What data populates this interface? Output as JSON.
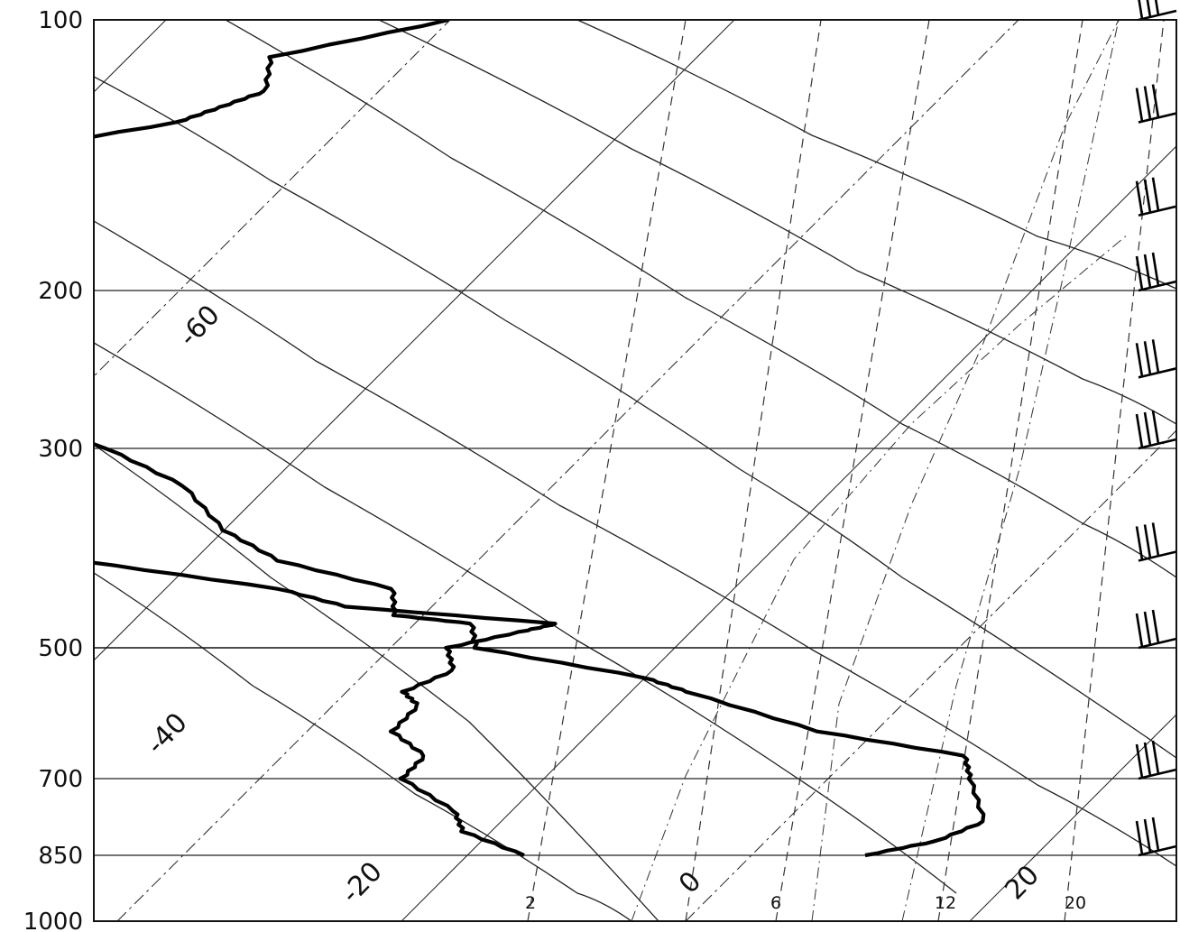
{
  "chart_data": {
    "type": "line",
    "title": "",
    "xlabel": "",
    "ylabel": "",
    "grid": true,
    "legend": "none",
    "pressure_axis": {
      "scale": "log",
      "ylim": [
        1000,
        100
      ],
      "ticks": [
        "100",
        "200",
        "300",
        "500",
        "700",
        "850",
        "1000"
      ]
    },
    "isotherm_labels": [
      "-60",
      "-40",
      "-20",
      "0",
      "20"
    ],
    "mixing_ratio_labels": [
      "2",
      "6",
      "12",
      "20"
    ],
    "series": [
      {
        "kind": "temperature",
        "pressure": [
          850,
          820,
          780,
          700,
          660,
          620,
          560,
          540,
          500,
          470,
          460,
          430,
          400,
          370,
          330,
          300,
          270,
          250,
          230,
          210,
          200,
          196,
          180,
          175,
          165,
          160,
          150,
          140,
          130,
          125,
          120,
          110,
          100
        ],
        "temp": [
          4,
          6,
          7,
          5,
          4,
          -2,
          -8,
          -10,
          -17,
          -18,
          -21,
          -22,
          -27,
          -30,
          -33,
          -37,
          -43,
          -45,
          -50,
          -52,
          -56,
          -57,
          -53,
          -54,
          -53,
          -52,
          -53,
          -51,
          -46,
          -45,
          -44,
          -45,
          -40
        ]
      },
      {
        "kind": "dewpoint",
        "pressure": [
          850,
          800,
          760,
          700,
          660,
          620,
          580,
          560,
          530,
          500,
          480,
          470,
          450,
          430,
          400,
          380,
          340,
          320,
          310
        ],
        "temp": [
          -8,
          -11,
          -12,
          -15,
          -15,
          -17,
          -17,
          -18,
          -17,
          -18,
          -16,
          -15,
          -23,
          -26,
          -34,
          -36,
          -43,
          -44,
          -45
        ]
      }
    ],
    "wind_barbs": [
      {
        "pressure": 100,
        "barb": "flag-barbs"
      },
      {
        "pressure": 130,
        "barb": "flag-barbs"
      },
      {
        "pressure": 165,
        "barb": "flag-barbs"
      },
      {
        "pressure": 200,
        "barb": "barbs"
      },
      {
        "pressure": 250,
        "barb": "barbs"
      },
      {
        "pressure": 300,
        "barb": "barbs"
      },
      {
        "pressure": 400,
        "barb": "barbs"
      },
      {
        "pressure": 500,
        "barb": "barbs"
      },
      {
        "pressure": 700,
        "barb": "barbs"
      },
      {
        "pressure": 850,
        "barb": "barbs"
      }
    ]
  }
}
